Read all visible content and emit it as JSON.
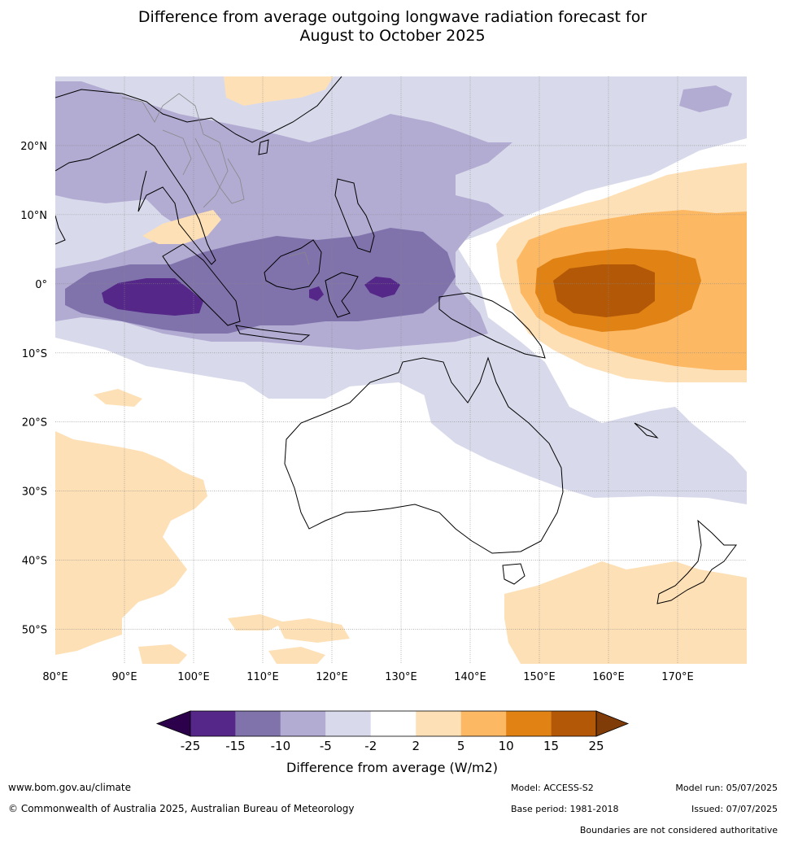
{
  "title_line1": "Difference from average outgoing longwave radiation forecast for",
  "title_line2": "August to October 2025",
  "map": {
    "lon_labels": [
      "80°E",
      "90°E",
      "100°E",
      "110°E",
      "120°E",
      "130°E",
      "140°E",
      "150°E",
      "160°E",
      "170°E"
    ],
    "lat_labels": [
      "20°N",
      "10°N",
      "0°",
      "10°S",
      "20°S",
      "30°S",
      "40°S",
      "50°S"
    ],
    "lon_range": [
      80,
      180
    ],
    "lat_range": [
      -55,
      30
    ]
  },
  "colorbar": {
    "labels": [
      "-25",
      "-15",
      "-10",
      "-5",
      "-2",
      "2",
      "5",
      "10",
      "15",
      "25"
    ],
    "colors": [
      "#2d004b",
      "#542788",
      "#8073ac",
      "#b2abd2",
      "#d8daeb",
      "#ffffff",
      "#fee0b6",
      "#fdb863",
      "#e08214",
      "#b35806",
      "#7f3b08"
    ],
    "unit_label": "Difference from average (W/m2)"
  },
  "footer": {
    "website": "www.bom.gov.au/climate",
    "copyright": "© Commonwealth of Australia 2025, Australian Bureau of Meteorology",
    "model": "Model: ACCESS-S2",
    "base_period": "Base period: 1981-2018",
    "model_run": "Model run: 05/07/2025",
    "issued": "Issued: 07/07/2025",
    "disclaimer": "Boundaries are not considered authoritative"
  }
}
